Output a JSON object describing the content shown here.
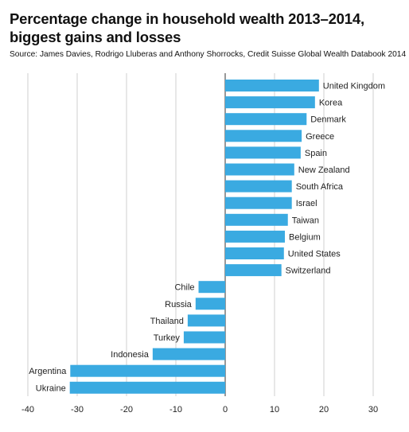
{
  "title_line1": "Percentage change in household wealth 2013–2014,",
  "title_line2": "biggest gains and losses",
  "source": "Source: James Davies, Rodrigo Lluberas and Anthony Shorrocks, Credit Suisse Global Wealth Databook 2014",
  "colors": {
    "bar": "#3aaae1",
    "grid": "#cfcfcf",
    "axis": "#555555"
  },
  "chart_data": {
    "type": "bar",
    "orientation": "horizontal",
    "title": "Percentage change in household wealth 2013–2014, biggest gains and losses",
    "categories": [
      "United Kingdom",
      "Korea",
      "Denmark",
      "Greece",
      "Spain",
      "New Zealand",
      "South Africa",
      "Israel",
      "Taiwan",
      "Belgium",
      "United States",
      "Switzerland",
      "Chile",
      "Russia",
      "Thailand",
      "Turkey",
      "Indonesia",
      "Argentina",
      "Ukraine"
    ],
    "values": [
      19,
      18.2,
      16.5,
      15.5,
      15.3,
      14,
      13.5,
      13.5,
      12.7,
      12.1,
      11.9,
      11.4,
      -5.4,
      -6,
      -7.6,
      -8.4,
      -14.7,
      -31.4,
      -31.5
    ],
    "xlim": [
      -40,
      30
    ],
    "xticks": [
      -40,
      -30,
      -20,
      -10,
      0,
      10,
      20,
      30
    ],
    "grid": true,
    "xlabel": "",
    "ylabel": ""
  }
}
